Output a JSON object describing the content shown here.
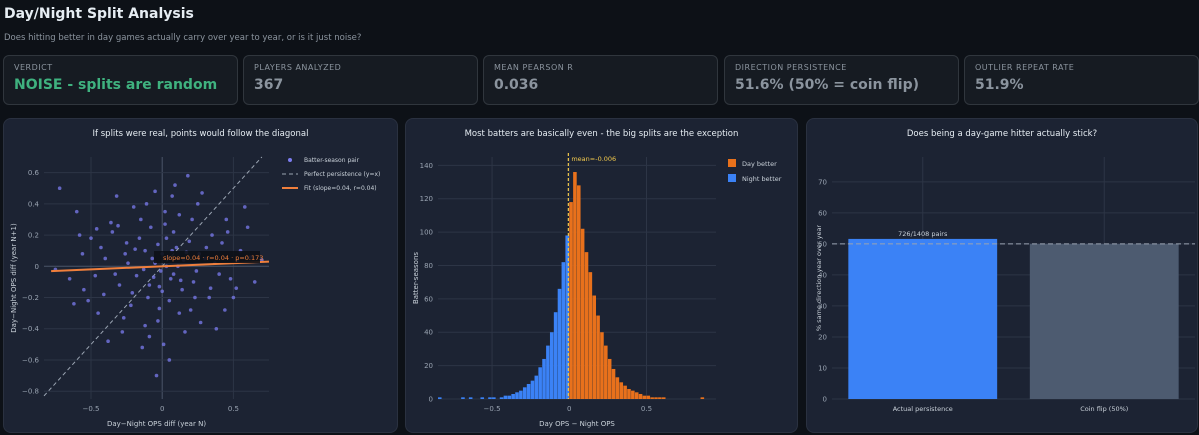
{
  "header": {
    "title": "Day/Night Split Analysis",
    "subtitle": "Does hitting better in day games actually carry over year to year, or is it just noise?"
  },
  "metrics": [
    {
      "label": "VERDICT",
      "value": "NOISE - splits are random",
      "accent": true
    },
    {
      "label": "PLAYERS ANALYZED",
      "value": "367",
      "accent": false
    },
    {
      "label": "MEAN PEARSON R",
      "value": "0.036",
      "accent": false
    },
    {
      "label": "DIRECTION PERSISTENCE",
      "value": "51.6% (50% = coin flip)",
      "accent": false
    },
    {
      "label": "OUTLIER REPEAT RATE",
      "value": "51.9%",
      "accent": false
    }
  ],
  "colors": {
    "scatter_points": "#7b7cf0",
    "fit_line": "#f07f3c",
    "day_better": "#e8711c",
    "night_better": "#3b82f6",
    "coin_flip": "#4d5b70",
    "mean_line": "#f2c94c"
  },
  "chart_data": [
    {
      "type": "scatter",
      "title": "If splits were real, points would follow the diagonal",
      "xlabel": "Day−Night OPS diff (year N)",
      "ylabel": "Day−Night OPS diff (year N+1)",
      "xlim": [
        -0.83,
        0.75
      ],
      "ylim": [
        -0.85,
        0.7
      ],
      "xticks": [
        -0.5,
        0,
        0.5
      ],
      "xtick_labels": [
        "−0.5",
        "0",
        "0.5"
      ],
      "yticks": [
        -0.8,
        -0.6,
        -0.4,
        -0.2,
        0,
        0.2,
        0.4,
        0.6
      ],
      "ytick_labels": [
        "−0.8",
        "−0.6",
        "−0.4",
        "−0.2",
        "0",
        "0.2",
        "0.4",
        "0.6"
      ],
      "legend": [
        "Batter-season pair",
        "Perfect persistence (y=x)",
        "Fit (slope=0.04, r=0.04)"
      ],
      "legend_position": "top-right",
      "annotation": "slope=0.04 · r=0.04 · p=0.173",
      "fit": {
        "slope": 0.04,
        "intercept": 0.0
      },
      "grid": true,
      "points": [
        [
          -0.05,
          0.02
        ],
        [
          0.08,
          -0.05
        ],
        [
          -0.12,
          0.1
        ],
        [
          0.15,
          0.04
        ],
        [
          -0.02,
          -0.13
        ],
        [
          0.1,
          0.12
        ],
        [
          -0.18,
          -0.06
        ],
        [
          0.03,
          0.18
        ],
        [
          0.22,
          -0.1
        ],
        [
          -0.25,
          0.15
        ],
        [
          0.05,
          -0.22
        ],
        [
          -0.08,
          0.25
        ],
        [
          0.3,
          0.05
        ],
        [
          -0.3,
          -0.12
        ],
        [
          0.12,
          -0.3
        ],
        [
          -0.15,
          0.3
        ],
        [
          0.35,
          0.2
        ],
        [
          -0.35,
          0.22
        ],
        [
          0.2,
          -0.28
        ],
        [
          -0.22,
          -0.25
        ],
        [
          0.4,
          -0.05
        ],
        [
          -0.4,
          0.05
        ],
        [
          0.02,
          0.35
        ],
        [
          -0.03,
          -0.35
        ],
        [
          0.45,
          0.3
        ],
        [
          -0.45,
          -0.3
        ],
        [
          0.25,
          0.4
        ],
        [
          -0.28,
          -0.42
        ],
        [
          0.5,
          -0.2
        ],
        [
          -0.5,
          0.18
        ],
        [
          0.55,
          0.1
        ],
        [
          -0.55,
          -0.15
        ],
        [
          0.6,
          0.25
        ],
        [
          -0.6,
          0.35
        ],
        [
          0.65,
          -0.1
        ],
        [
          -0.65,
          -0.08
        ],
        [
          -0.72,
          0.5
        ],
        [
          0.18,
          0.58
        ],
        [
          0.05,
          -0.6
        ],
        [
          -0.05,
          0.48
        ],
        [
          0.28,
          0.47
        ],
        [
          -0.32,
          0.45
        ],
        [
          0.38,
          -0.4
        ],
        [
          -0.38,
          -0.48
        ],
        [
          0.08,
          0.22
        ],
        [
          -0.1,
          -0.2
        ],
        [
          0.14,
          -0.15
        ],
        [
          -0.16,
          0.18
        ],
        [
          0.0,
          0.08
        ],
        [
          0.06,
          -0.08
        ],
        [
          -0.07,
          0.05
        ],
        [
          0.11,
          0.0
        ],
        [
          -0.13,
          -0.02
        ],
        [
          0.17,
          0.09
        ],
        [
          -0.19,
          0.11
        ],
        [
          0.24,
          -0.03
        ],
        [
          -0.24,
          0.02
        ],
        [
          0.31,
          0.12
        ],
        [
          -0.33,
          -0.05
        ],
        [
          0.42,
          0.15
        ],
        [
          -0.43,
          0.12
        ],
        [
          0.48,
          -0.08
        ],
        [
          -0.47,
          -0.06
        ],
        [
          0.53,
          0.03
        ],
        [
          -0.52,
          -0.22
        ],
        [
          0.58,
          0.38
        ],
        [
          -0.58,
          0.2
        ],
        [
          0.34,
          -0.14
        ],
        [
          -0.2,
          0.38
        ],
        [
          0.07,
          0.45
        ],
        [
          -0.09,
          -0.45
        ],
        [
          0.21,
          0.3
        ],
        [
          -0.27,
          -0.33
        ],
        [
          0.27,
          -0.36
        ],
        [
          0.01,
          -0.5
        ],
        [
          -0.11,
          0.4
        ],
        [
          0.16,
          -0.42
        ],
        [
          -0.04,
          -0.7
        ],
        [
          0.09,
          0.52
        ],
        [
          -0.14,
          -0.52
        ],
        [
          0.44,
          -0.28
        ],
        [
          -0.36,
          0.28
        ],
        [
          0.03,
          0.0
        ],
        [
          -0.01,
          -0.03
        ],
        [
          0.04,
          0.06
        ],
        [
          -0.06,
          -0.07
        ],
        [
          0.07,
          0.1
        ],
        [
          -0.03,
          0.14
        ],
        [
          0.13,
          -0.09
        ],
        [
          -0.09,
          -0.12
        ],
        [
          0.19,
          0.16
        ],
        [
          -0.21,
          -0.17
        ],
        [
          0.26,
          0.08
        ],
        [
          -0.26,
          0.08
        ],
        [
          0.33,
          -0.2
        ],
        [
          -0.31,
          0.26
        ],
        [
          0.37,
          0.02
        ],
        [
          -0.41,
          -0.18
        ],
        [
          0.46,
          0.22
        ],
        [
          -0.46,
          0.24
        ],
        [
          0.52,
          -0.14
        ],
        [
          -0.56,
          0.08
        ],
        [
          0.62,
          0.06
        ],
        [
          -0.62,
          -0.24
        ],
        [
          0.7,
          0.04
        ],
        [
          -0.75,
          -0.02
        ],
        [
          0.0,
          -0.16
        ],
        [
          0.02,
          0.27
        ],
        [
          -0.02,
          -0.27
        ],
        [
          0.12,
          0.33
        ],
        [
          -0.12,
          -0.38
        ],
        [
          0.23,
          -0.2
        ]
      ]
    },
    {
      "type": "bar",
      "title": "Most batters are basically even - the big splits are the exception",
      "xlabel": "Day OPS − Night OPS",
      "ylabel": "Batter-seasons",
      "xlim": [
        -0.85,
        0.95
      ],
      "ylim": [
        0,
        145
      ],
      "xticks": [
        -0.5,
        0,
        0.5
      ],
      "xtick_labels": [
        "−0.5",
        "0",
        "0.5"
      ],
      "yticks": [
        0,
        20,
        40,
        60,
        80,
        100,
        120,
        140
      ],
      "ytick_labels": [
        "0",
        "20",
        "40",
        "60",
        "80",
        "100",
        "120",
        "140"
      ],
      "legend": [
        "Day better",
        "Night better"
      ],
      "legend_position": "top-right",
      "annotation": "mean=-0.006",
      "mean": -0.006,
      "grid": true,
      "bin_width": 0.025,
      "bins_start": -0.85,
      "counts": [
        1,
        0,
        0,
        0,
        0,
        0,
        1,
        0,
        1,
        0,
        0,
        1,
        0,
        1,
        1,
        0,
        1,
        2,
        2,
        3,
        4,
        5,
        7,
        9,
        11,
        14,
        19,
        24,
        32,
        40,
        52,
        66,
        82,
        98,
        118,
        136,
        128,
        102,
        88,
        76,
        62,
        50,
        40,
        32,
        24,
        18,
        13,
        10,
        8,
        6,
        5,
        4,
        3,
        2,
        2,
        1,
        1,
        1,
        1,
        0,
        0,
        0,
        0,
        0,
        0,
        0,
        0,
        0,
        1,
        0,
        0,
        0
      ]
    },
    {
      "type": "bar",
      "title": "Does being a day-game hitter actually stick?",
      "xlabel": "",
      "ylabel": "% same direction year over year",
      "categories": [
        "Actual persistence",
        "Coin flip (50%)"
      ],
      "values": [
        51.6,
        50
      ],
      "ylim": [
        0,
        78
      ],
      "yticks": [
        0,
        10,
        20,
        30,
        40,
        50,
        60,
        70
      ],
      "ytick_labels": [
        "0",
        "10",
        "20",
        "30",
        "40",
        "50",
        "60",
        "70"
      ],
      "bar_label": "726/1408 pairs",
      "reference": 50,
      "grid": true
    }
  ]
}
